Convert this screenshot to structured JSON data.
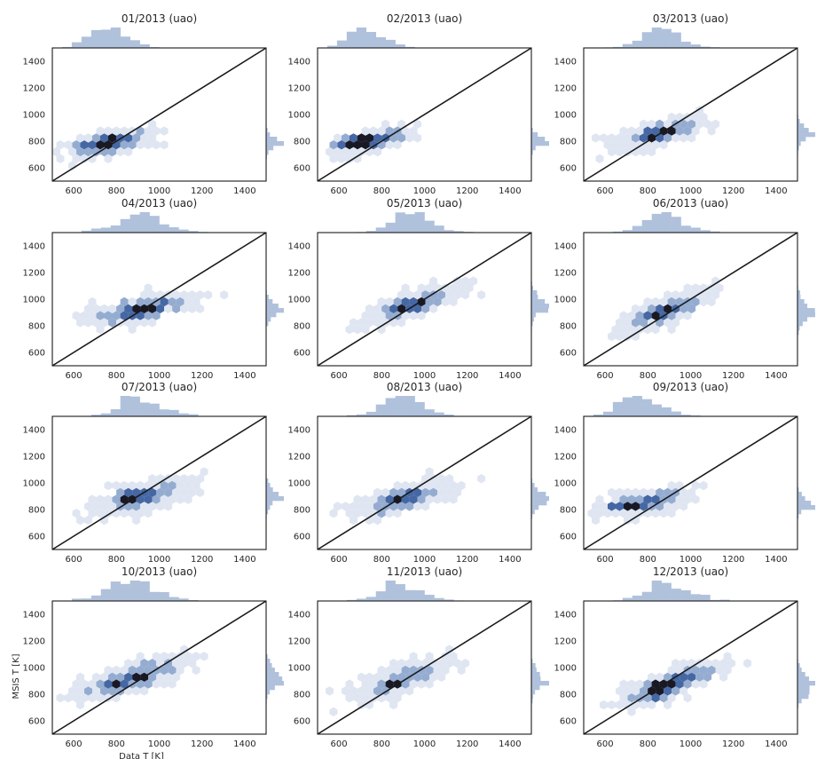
{
  "figure": {
    "xlabel": "Data T [K]",
    "ylabel": "MSIS T [K]",
    "colors": {
      "dark": "#0d0d1a",
      "mid": "#3b5f9e",
      "light": "#8fa8cf",
      "faint": "#dde5f1",
      "hist": "#b0c1dc",
      "axis": "#1a1a1a"
    }
  },
  "chart_data": [
    {
      "type": "hexbin",
      "title": "01/2013 (uao)",
      "xlim": [
        500,
        1500
      ],
      "ylim": [
        500,
        1500
      ],
      "xticks": [
        600,
        800,
        1000,
        1200,
        1400
      ],
      "yticks": [
        600,
        800,
        1000,
        1200,
        1400
      ],
      "reference_line": "y=x",
      "marginal_histograms": true,
      "cloud": {
        "x_center": 780,
        "y_center": 790,
        "x_spread": 200,
        "slope": 0.3,
        "y_spread": 35,
        "dense_points": [
          [
            640,
            780
          ],
          [
            720,
            790
          ],
          [
            800,
            800
          ]
        ]
      }
    },
    {
      "type": "hexbin",
      "title": "02/2013 (uao)",
      "xlim": [
        500,
        1500
      ],
      "ylim": [
        500,
        1500
      ],
      "xticks": [
        600,
        800,
        1000,
        1200,
        1400
      ],
      "yticks": [
        600,
        800,
        1000,
        1200,
        1400
      ],
      "reference_line": "y=x",
      "marginal_histograms": true,
      "cloud": {
        "x_center": 740,
        "y_center": 800,
        "x_spread": 180,
        "slope": 0.35,
        "y_spread": 30,
        "dense_points": [
          [
            640,
            790
          ],
          [
            700,
            795
          ]
        ]
      }
    },
    {
      "type": "hexbin",
      "title": "03/2013 (uao)",
      "xlim": [
        500,
        1500
      ],
      "ylim": [
        500,
        1500
      ],
      "xticks": [
        600,
        800,
        1000,
        1200,
        1400
      ],
      "yticks": [
        600,
        800,
        1000,
        1200,
        1400
      ],
      "reference_line": "y=x",
      "marginal_histograms": true,
      "cloud": {
        "x_center": 860,
        "y_center": 860,
        "x_spread": 200,
        "slope": 0.4,
        "y_spread": 40,
        "dense_points": [
          [
            820,
            850
          ],
          [
            900,
            860
          ]
        ]
      }
    },
    {
      "type": "hexbin",
      "title": "04/2013 (uao)",
      "xlim": [
        500,
        1500
      ],
      "ylim": [
        500,
        1500
      ],
      "xticks": [
        600,
        800,
        1000,
        1200,
        1400
      ],
      "yticks": [
        600,
        800,
        1000,
        1200,
        1400
      ],
      "reference_line": "y=x",
      "marginal_histograms": true,
      "cloud": {
        "x_center": 900,
        "y_center": 920,
        "x_spread": 260,
        "slope": 0.35,
        "y_spread": 40,
        "dense_points": [
          [
            880,
            910
          ],
          [
            960,
            930
          ]
        ]
      }
    },
    {
      "type": "hexbin",
      "title": "05/2013 (uao)",
      "xlim": [
        500,
        1500
      ],
      "ylim": [
        500,
        1500
      ],
      "xticks": [
        600,
        800,
        1000,
        1200,
        1400
      ],
      "yticks": [
        600,
        800,
        1000,
        1200,
        1400
      ],
      "reference_line": "y=x",
      "marginal_histograms": true,
      "cloud": {
        "x_center": 950,
        "y_center": 960,
        "x_spread": 220,
        "slope": 0.5,
        "y_spread": 40,
        "dense_points": [
          [
            880,
            920
          ],
          [
            960,
            960
          ]
        ]
      }
    },
    {
      "type": "hexbin",
      "title": "06/2013 (uao)",
      "xlim": [
        500,
        1500
      ],
      "ylim": [
        500,
        1500
      ],
      "xticks": [
        600,
        800,
        1000,
        1200,
        1400
      ],
      "yticks": [
        600,
        800,
        1000,
        1200,
        1400
      ],
      "reference_line": "y=x",
      "marginal_histograms": true,
      "cloud": {
        "x_center": 880,
        "y_center": 910,
        "x_spread": 210,
        "slope": 0.6,
        "y_spread": 45,
        "dense_points": [
          [
            840,
            880
          ],
          [
            900,
            920
          ]
        ]
      }
    },
    {
      "type": "hexbin",
      "title": "07/2013 (uao)",
      "xlim": [
        500,
        1500
      ],
      "ylim": [
        500,
        1500
      ],
      "xticks": [
        600,
        800,
        1000,
        1200,
        1400
      ],
      "yticks": [
        600,
        800,
        1000,
        1200,
        1400
      ],
      "reference_line": "y=x",
      "marginal_histograms": true,
      "cloud": {
        "x_center": 930,
        "y_center": 900,
        "x_spread": 250,
        "slope": 0.4,
        "y_spread": 45,
        "dense_points": [
          [
            850,
            880
          ],
          [
            860,
            900
          ]
        ]
      }
    },
    {
      "type": "hexbin",
      "title": "08/2013 (uao)",
      "xlim": [
        500,
        1500
      ],
      "ylim": [
        500,
        1500
      ],
      "xticks": [
        600,
        800,
        1000,
        1200,
        1400
      ],
      "yticks": [
        600,
        800,
        1000,
        1200,
        1400
      ],
      "reference_line": "y=x",
      "marginal_histograms": true,
      "cloud": {
        "x_center": 900,
        "y_center": 880,
        "x_spread": 230,
        "slope": 0.4,
        "y_spread": 40,
        "dense_points": [
          [
            860,
            860
          ],
          [
            940,
            900
          ]
        ]
      }
    },
    {
      "type": "hexbin",
      "title": "09/2013 (uao)",
      "xlim": [
        500,
        1500
      ],
      "ylim": [
        500,
        1500
      ],
      "xticks": [
        600,
        800,
        1000,
        1200,
        1400
      ],
      "yticks": [
        600,
        800,
        1000,
        1200,
        1400
      ],
      "reference_line": "y=x",
      "marginal_histograms": true,
      "cloud": {
        "x_center": 780,
        "y_center": 850,
        "x_spread": 200,
        "slope": 0.3,
        "y_spread": 35,
        "dense_points": [
          [
            660,
            820
          ],
          [
            720,
            825
          ]
        ]
      }
    },
    {
      "type": "hexbin",
      "title": "10/2013 (uao)",
      "xlim": [
        500,
        1500
      ],
      "ylim": [
        500,
        1500
      ],
      "xticks": [
        600,
        800,
        1000,
        1200,
        1400
      ],
      "yticks": [
        600,
        800,
        1000,
        1200,
        1400
      ],
      "reference_line": "y=x",
      "marginal_histograms": true,
      "cloud": {
        "x_center": 880,
        "y_center": 930,
        "x_spread": 260,
        "slope": 0.45,
        "y_spread": 50,
        "dense_points": [
          [
            780,
            880
          ],
          [
            900,
            930
          ]
        ]
      }
    },
    {
      "type": "hexbin",
      "title": "11/2013 (uao)",
      "xlim": [
        500,
        1500
      ],
      "ylim": [
        500,
        1500
      ],
      "xticks": [
        600,
        800,
        1000,
        1200,
        1400
      ],
      "yticks": [
        600,
        800,
        1000,
        1200,
        1400
      ],
      "reference_line": "y=x",
      "marginal_histograms": true,
      "cloud": {
        "x_center": 900,
        "y_center": 910,
        "x_spread": 220,
        "slope": 0.55,
        "y_spread": 50,
        "dense_points": [
          [
            860,
            870
          ],
          [
            830,
            890
          ]
        ]
      }
    },
    {
      "type": "hexbin",
      "title": "12/2013 (uao)",
      "xlim": [
        500,
        1500
      ],
      "ylim": [
        500,
        1500
      ],
      "xticks": [
        600,
        800,
        1000,
        1200,
        1400
      ],
      "yticks": [
        600,
        800,
        1000,
        1200,
        1400
      ],
      "reference_line": "y=x",
      "marginal_histograms": true,
      "cloud": {
        "x_center": 900,
        "y_center": 870,
        "x_spread": 240,
        "slope": 0.6,
        "y_spread": 40,
        "dense_points": [
          [
            840,
            800
          ],
          [
            860,
            880
          ]
        ]
      }
    }
  ]
}
